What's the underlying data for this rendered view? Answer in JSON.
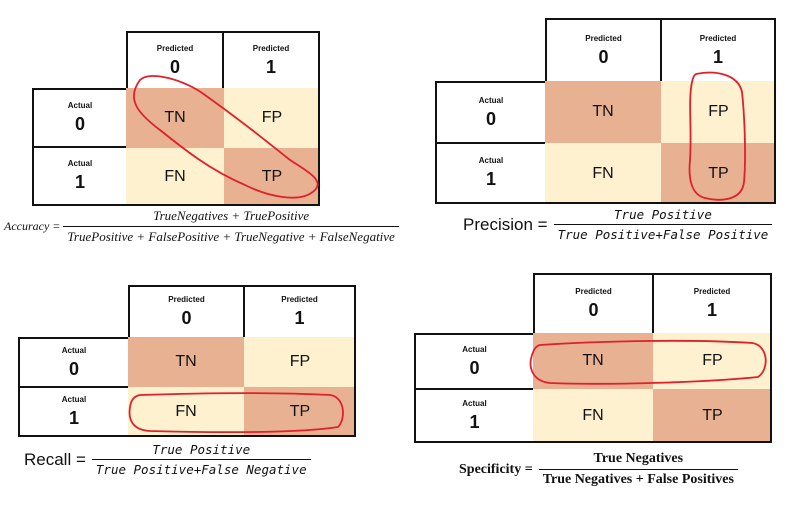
{
  "matrix": {
    "predicted_label": "Predicted",
    "actual_label": "Actual",
    "col_values": [
      "0",
      "1"
    ],
    "row_values": [
      "0",
      "1"
    ],
    "cells": {
      "tn": "TN",
      "fp": "FP",
      "fn": "FN",
      "tp": "TP"
    }
  },
  "formulas": {
    "accuracy": {
      "lhs": "Accuracy =",
      "numerator": "TrueNegatives + TruePositive",
      "denominator": "TruePositive + FalsePositive + TrueNegative + FalseNegative"
    },
    "precision": {
      "lhs": "Precision =",
      "numerator": "True Positive",
      "denominator": "True Positive+False Positive"
    },
    "recall": {
      "lhs": "Recall =",
      "numerator": "True Positive",
      "denominator": "True Positive+False Negative"
    },
    "specificity": {
      "lhs": "Specificity =",
      "numerator": "True Negatives",
      "denominator": "True Negatives + False Positives"
    }
  },
  "colors": {
    "diagonal": "#e8b292",
    "off_diagonal": "#fdf1d0",
    "highlight": "#e0202a"
  }
}
